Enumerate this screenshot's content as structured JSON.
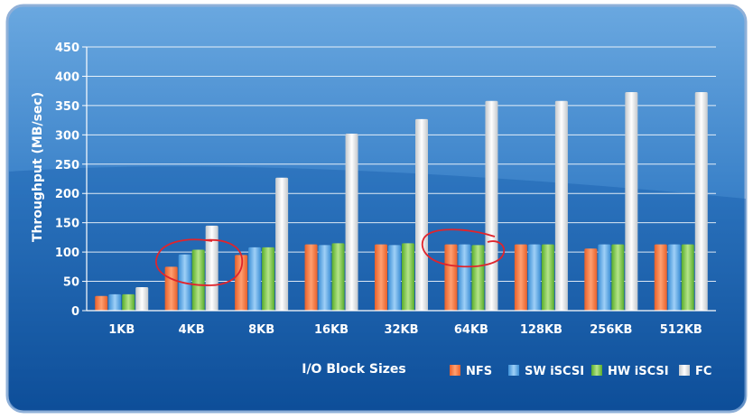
{
  "chart_data": {
    "type": "bar",
    "title": "",
    "xlabel": "I/O Block Sizes",
    "ylabel": "Throughput (MB/sec)",
    "ylim": [
      0,
      450
    ],
    "yticks": [
      "0",
      "50",
      "100",
      "150",
      "200",
      "250",
      "300",
      "350",
      "400",
      "450"
    ],
    "grid": true,
    "legend_position": "bottom-right",
    "categories": [
      "1KB",
      "4KB",
      "8KB",
      "16KB",
      "32KB",
      "64KB",
      "128KB",
      "256KB",
      "512KB"
    ],
    "series": [
      {
        "name": "NFS",
        "color": "#f07a3a",
        "values": [
          25,
          75,
          95,
          113,
          113,
          113,
          113,
          106,
          113
        ]
      },
      {
        "name": "SW iSCSI",
        "color": "#4a9fe0",
        "values": [
          28,
          96,
          108,
          112,
          112,
          113,
          113,
          113,
          113
        ]
      },
      {
        "name": "HW iSCSI",
        "color": "#6cbf3c",
        "values": [
          28,
          104,
          108,
          115,
          115,
          112,
          113,
          113,
          113
        ]
      },
      {
        "name": "FC",
        "color": "#d4d8dc",
        "values": [
          40,
          145,
          227,
          302,
          327,
          358,
          358,
          373,
          373
        ]
      }
    ],
    "annotations": [
      "red-circle-4KB",
      "red-circle-64KB"
    ]
  },
  "colors": {
    "background_top": "#5a9bd8",
    "background_bottom": "#0f4f99",
    "frame_border": "#8fb0d8",
    "annotation": "#e0242c"
  }
}
